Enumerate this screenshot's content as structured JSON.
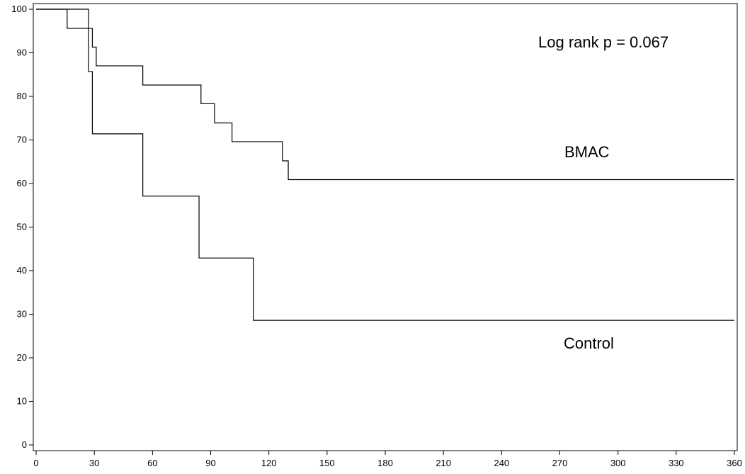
{
  "chart_data": {
    "type": "line",
    "title": "",
    "xlabel": "",
    "ylabel": "",
    "xlim": [
      0,
      360
    ],
    "ylim": [
      0,
      100
    ],
    "x_ticks": [
      0,
      30,
      60,
      90,
      120,
      150,
      180,
      210,
      240,
      270,
      300,
      330,
      360
    ],
    "y_ticks": [
      0,
      10,
      20,
      30,
      40,
      50,
      60,
      70,
      80,
      90,
      100
    ],
    "grid": false,
    "step": true,
    "series": [
      {
        "name": "BMAC",
        "x": [
          0,
          16,
          29,
          31,
          35,
          55,
          85,
          92,
          101,
          127,
          130,
          360
        ],
        "y": [
          100,
          95.6,
          91.3,
          87,
          87,
          82.6,
          78.3,
          73.9,
          69.6,
          65.2,
          60.9,
          60.9
        ]
      },
      {
        "name": "Control",
        "x": [
          0,
          27,
          29,
          55,
          84,
          112,
          360
        ],
        "y": [
          100,
          85.7,
          71.4,
          57.1,
          42.9,
          28.6,
          28.6
        ]
      }
    ],
    "annotations": [
      {
        "text": "Log rank p = 0.067"
      }
    ]
  }
}
